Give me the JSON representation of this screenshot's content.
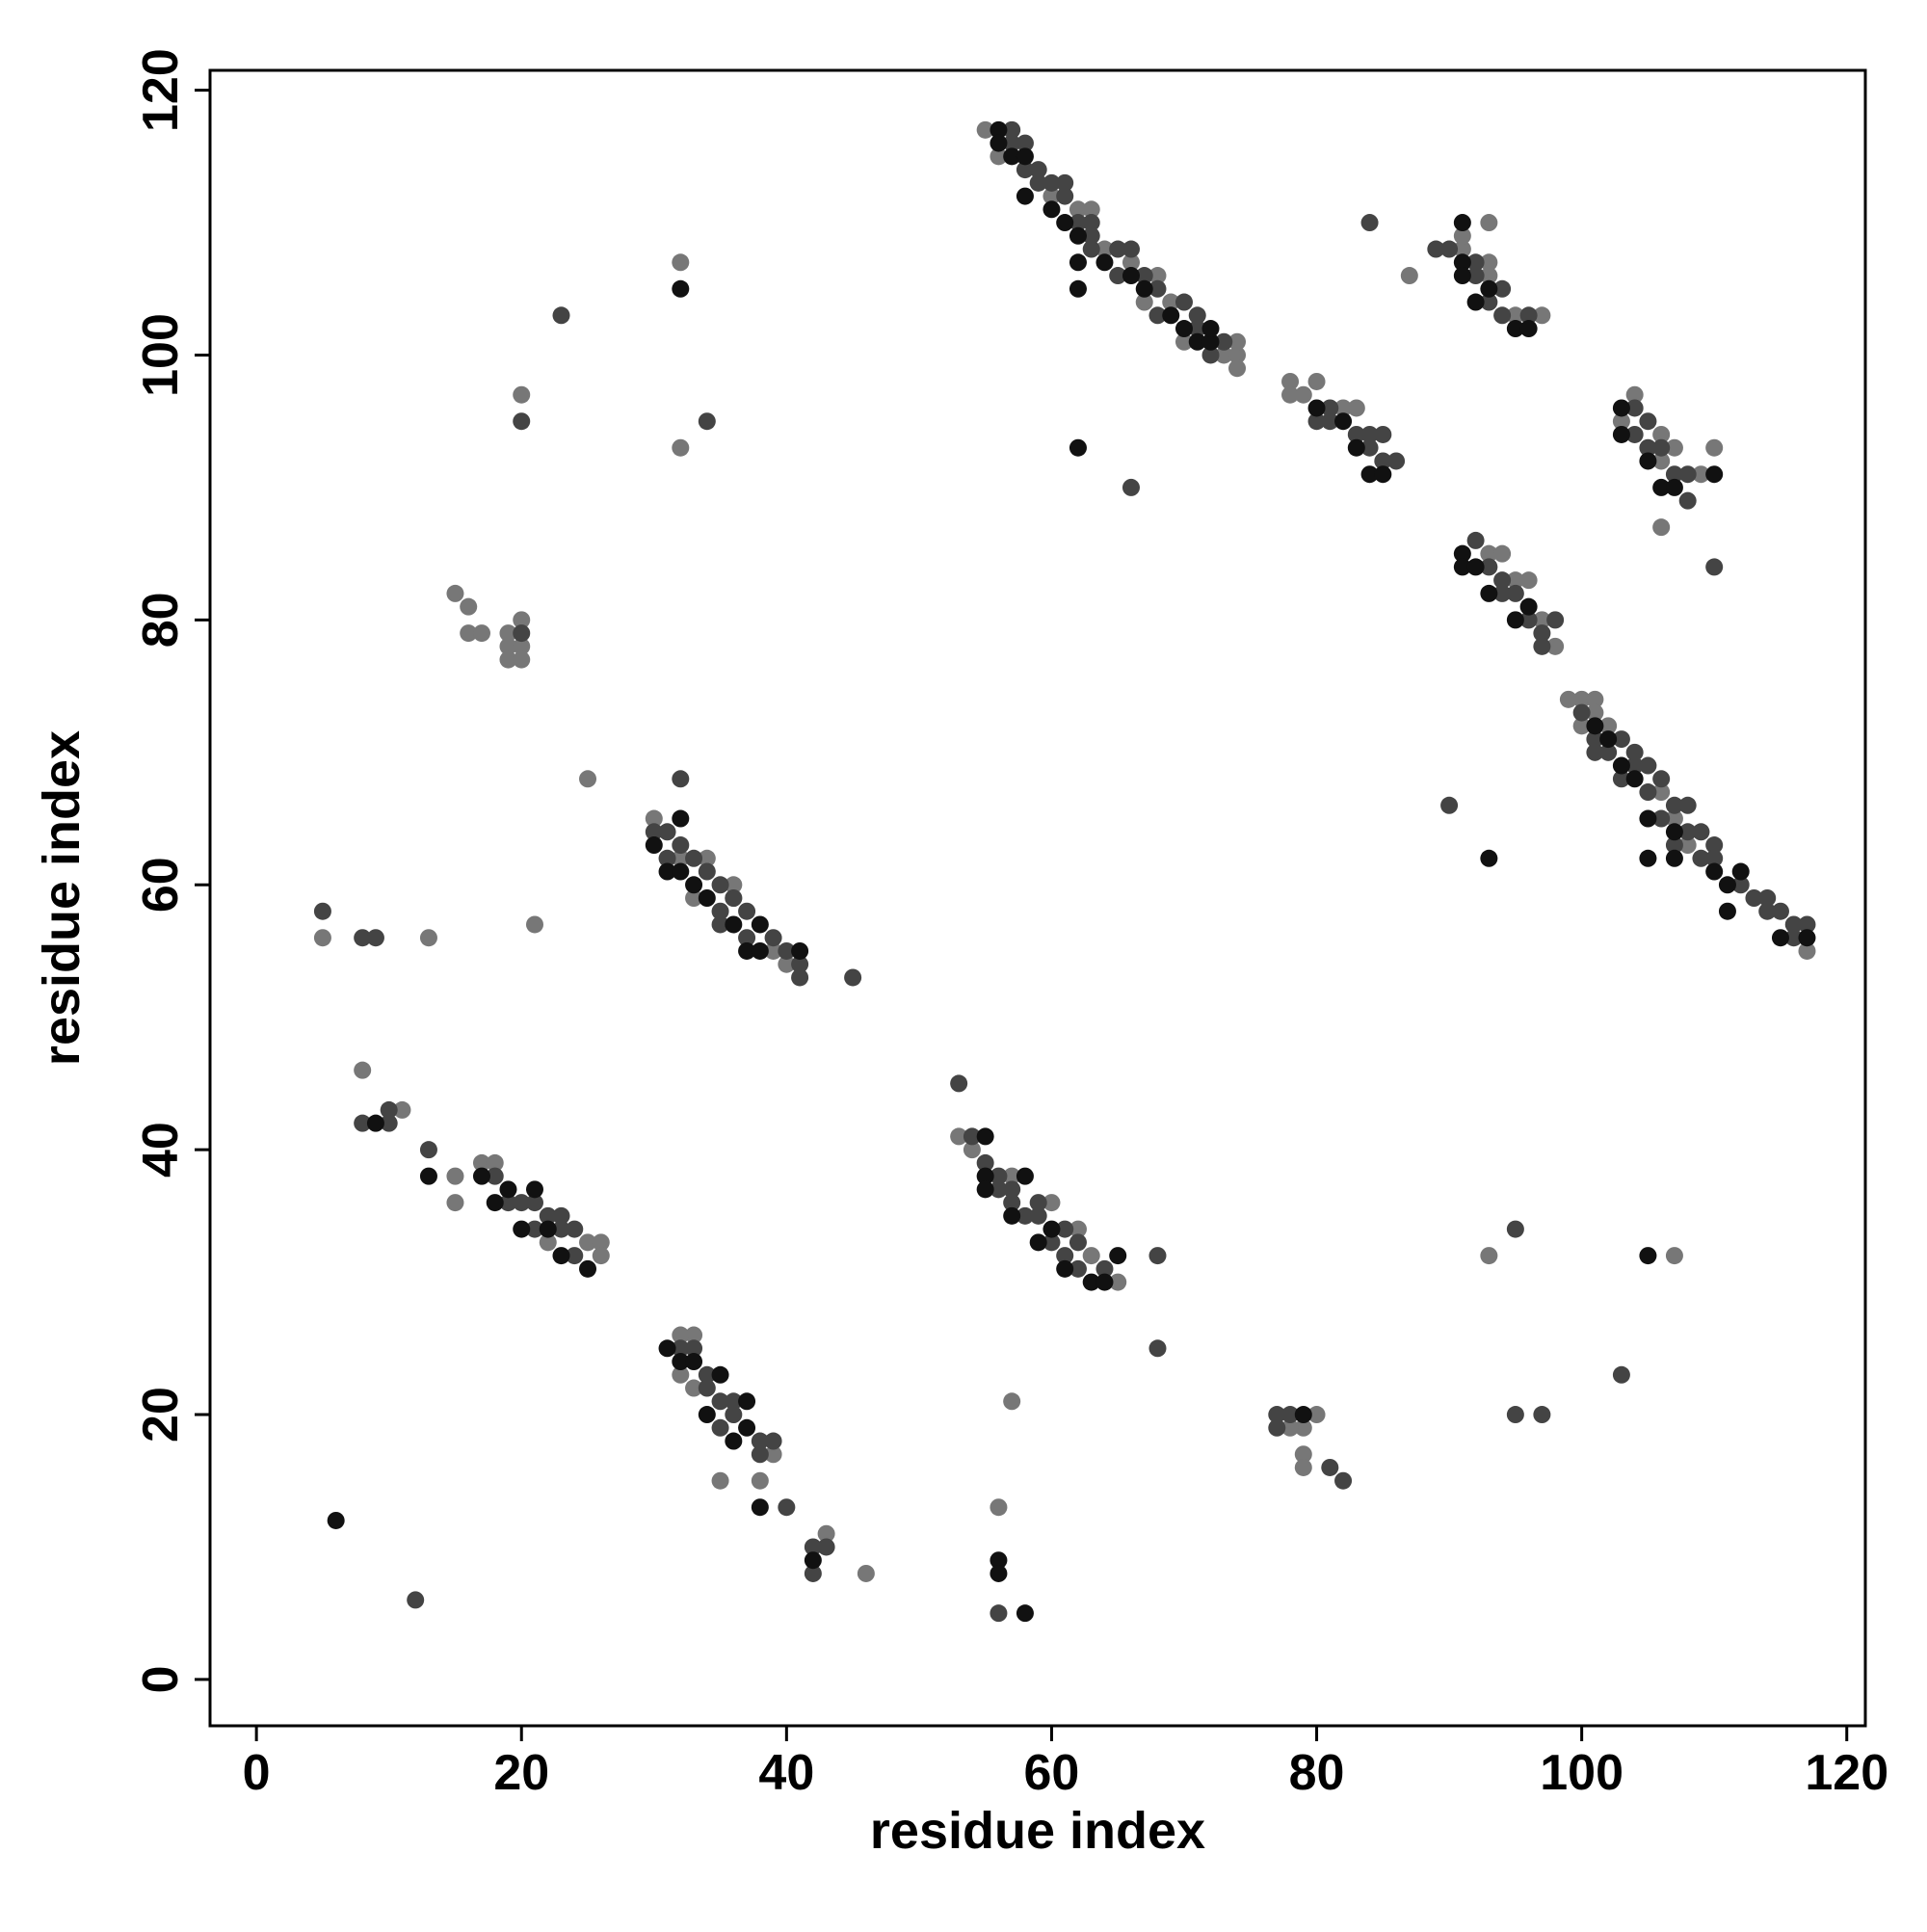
{
  "chart_data": {
    "type": "scatter",
    "x_label": "residue index",
    "y_label": "residue index",
    "xlim": [
      -3.5,
      121.4
    ],
    "ylim": [
      -3.5,
      121.5
    ],
    "xticks": [
      0,
      20,
      40,
      60,
      80,
      100,
      120
    ],
    "yticks": [
      0,
      20,
      40,
      60,
      80,
      100,
      120
    ],
    "grid": false,
    "series": [
      {
        "color": "#777777",
        "x": [
          55,
          56,
          60,
          62,
          63,
          64,
          66,
          67,
          68,
          69,
          70,
          73,
          74,
          74,
          74,
          91,
          91,
          93,
          93,
          95,
          97,
          93,
          87,
          78,
          80,
          78,
          79,
          82,
          83,
          103,
          104,
          106,
          107,
          106,
          109,
          110,
          106,
          93,
          94,
          95,
          96,
          97,
          98,
          99,
          100,
          101,
          100,
          101,
          102,
          106,
          107,
          108,
          117,
          30,
          32,
          33,
          34,
          36,
          36,
          39,
          40,
          25,
          17,
          18,
          22,
          25,
          26,
          26,
          15,
          15,
          8,
          11,
          5,
          13,
          21,
          15,
          16,
          16,
          17,
          19,
          19,
          20,
          19,
          20,
          20,
          20,
          32,
          32,
          53,
          54,
          57,
          60,
          62,
          63,
          65,
          32,
          33,
          32,
          33,
          35,
          38,
          39,
          43,
          46,
          56,
          57,
          79,
          78,
          79,
          79,
          80,
          93,
          107
        ],
        "y": [
          117,
          115,
          112,
          111,
          111,
          108,
          107,
          104,
          106,
          104,
          101,
          100,
          100,
          101,
          99,
          108,
          109,
          106,
          107,
          103,
          103,
          110,
          106,
          98,
          98,
          97,
          97,
          96,
          96,
          95,
          97,
          94,
          93,
          92,
          91,
          93,
          87,
          85,
          85,
          83,
          83,
          80,
          78,
          74,
          74,
          74,
          72,
          73,
          72,
          67,
          65,
          63,
          55,
          65,
          62,
          59,
          62,
          60,
          59,
          55,
          54,
          68,
          39,
          39,
          33,
          33,
          33,
          32,
          38,
          36,
          46,
          43,
          56,
          56,
          57,
          82,
          81,
          79,
          79,
          79,
          78,
          78,
          77,
          77,
          80,
          97,
          107,
          93,
          41,
          40,
          38,
          36,
          34,
          32,
          30,
          23,
          26,
          26,
          22,
          15,
          15,
          17,
          11,
          8,
          13,
          21,
          19,
          19,
          17,
          16,
          20,
          32,
          32
        ]
      },
      {
        "color": "#444444",
        "x": [
          57,
          57,
          58,
          58,
          59,
          60,
          59,
          61,
          61,
          62,
          63,
          63,
          63,
          65,
          66,
          65,
          67,
          68,
          70,
          68,
          71,
          71,
          73,
          72,
          90,
          89,
          92,
          92,
          93,
          94,
          94,
          96,
          84,
          80,
          81,
          81,
          83,
          84,
          84,
          85,
          85,
          86,
          104,
          104,
          105,
          106,
          105,
          107,
          108,
          108,
          92,
          93,
          94,
          94,
          95,
          96,
          97,
          97,
          98,
          100,
          101,
          101,
          102,
          103,
          104,
          104,
          105,
          103,
          106,
          105,
          106,
          107,
          108,
          108,
          109,
          107,
          110,
          109,
          110,
          112,
          113,
          114,
          114,
          115,
          116,
          116,
          117,
          90,
          30,
          31,
          31,
          33,
          32,
          35,
          34,
          36,
          35,
          37,
          37,
          39,
          35,
          40,
          41,
          41,
          45,
          32,
          18,
          19,
          20,
          21,
          21,
          22,
          23,
          23,
          24,
          24,
          8,
          10,
          10,
          13,
          8,
          9,
          5,
          53,
          54,
          55,
          56,
          56,
          57,
          57,
          58,
          59,
          59,
          60,
          61,
          61,
          62,
          62,
          64,
          68,
          32,
          33,
          34,
          34,
          35,
          36,
          35,
          36,
          38,
          39,
          38,
          40,
          42,
          42,
          43,
          12,
          23,
          20,
          34,
          66,
          20,
          56,
          78,
          103,
          95,
          95,
          97,
          110,
          68,
          81,
          82,
          77,
          77
        ],
        "y": [
          117,
          116,
          116,
          114,
          113,
          113,
          114,
          112,
          113,
          110,
          110,
          109,
          108,
          108,
          108,
          106,
          106,
          105,
          104,
          103,
          103,
          102,
          101,
          100,
          108,
          108,
          107,
          106,
          104,
          105,
          103,
          103,
          110,
          95,
          96,
          95,
          94,
          94,
          93,
          94,
          92,
          92,
          94,
          96,
          95,
          93,
          93,
          91,
          91,
          89,
          86,
          84,
          83,
          82,
          82,
          80,
          79,
          78,
          80,
          73,
          71,
          70,
          70,
          71,
          70,
          69,
          69,
          68,
          68,
          67,
          65,
          66,
          66,
          64,
          64,
          63,
          63,
          62,
          62,
          60,
          59,
          59,
          58,
          58,
          57,
          56,
          57,
          66,
          64,
          64,
          62,
          62,
          63,
          60,
          61,
          59,
          58,
          58,
          56,
          56,
          57,
          55,
          54,
          53,
          53,
          68,
          38,
          36,
          36,
          36,
          34,
          35,
          35,
          34,
          32,
          34,
          42,
          42,
          43,
          40,
          56,
          56,
          58,
          45,
          41,
          39,
          38,
          37,
          37,
          36,
          35,
          35,
          36,
          33,
          34,
          32,
          31,
          33,
          31,
          32,
          25,
          25,
          22,
          23,
          21,
          21,
          19,
          20,
          18,
          18,
          17,
          13,
          8,
          10,
          10,
          6,
          103,
          95,
          95,
          90,
          79,
          5,
          20,
          23,
          34,
          20,
          20,
          84,
          25,
          16,
          15,
          20,
          19
        ]
      },
      {
        "color": "#111111",
        "x": [
          56,
          56,
          57,
          58,
          58,
          60,
          61,
          62,
          62,
          62,
          64,
          66,
          67,
          69,
          70,
          71,
          72,
          72,
          91,
          91,
          91,
          92,
          93,
          95,
          96,
          80,
          82,
          83,
          84,
          85,
          103,
          103,
          105,
          106,
          107,
          110,
          91,
          91,
          92,
          93,
          95,
          96,
          101,
          102,
          103,
          104,
          105,
          107,
          105,
          107,
          110,
          111,
          112,
          111,
          115,
          117,
          93,
          30,
          31,
          32,
          32,
          33,
          34,
          36,
          37,
          38,
          38,
          41,
          17,
          18,
          19,
          20,
          21,
          22,
          23,
          25,
          9,
          13,
          55,
          55,
          55,
          57,
          58,
          59,
          60,
          61,
          63,
          64,
          65,
          31,
          32,
          33,
          34,
          35,
          36,
          37,
          37,
          38,
          42,
          56,
          58,
          79,
          105,
          32,
          62,
          56,
          6
        ],
        "y": [
          117,
          116,
          115,
          115,
          112,
          111,
          110,
          109,
          107,
          105,
          107,
          106,
          105,
          103,
          102,
          101,
          101,
          102,
          110,
          107,
          106,
          104,
          105,
          102,
          102,
          96,
          95,
          93,
          91,
          91,
          96,
          94,
          92,
          90,
          90,
          91,
          85,
          84,
          84,
          82,
          80,
          81,
          72,
          71,
          69,
          68,
          65,
          64,
          62,
          62,
          61,
          60,
          61,
          58,
          56,
          56,
          62,
          63,
          61,
          65,
          61,
          60,
          59,
          57,
          55,
          55,
          57,
          55,
          38,
          36,
          37,
          34,
          37,
          34,
          32,
          31,
          42,
          38,
          41,
          38,
          37,
          35,
          38,
          33,
          34,
          31,
          30,
          30,
          32,
          25,
          24,
          24,
          20,
          23,
          18,
          21,
          19,
          13,
          9,
          9,
          5,
          20,
          32,
          105,
          93,
          8,
          12
        ]
      }
    ]
  }
}
